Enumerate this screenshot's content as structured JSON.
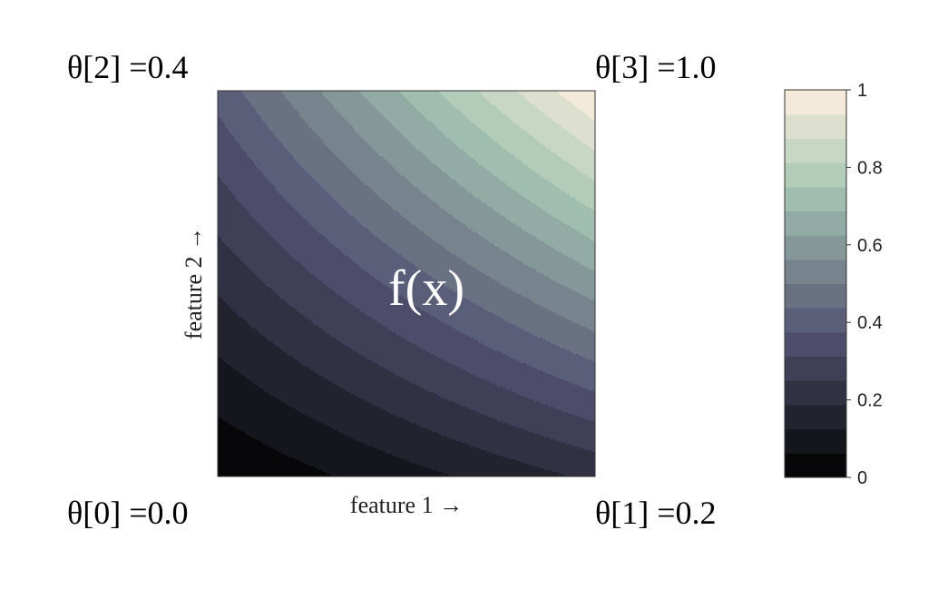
{
  "chart_data": {
    "type": "heatmap",
    "plot_type": "filled-contour",
    "center_label": "f(x)",
    "xlabel": "feature 1 →",
    "ylabel": "feature 2 →",
    "corners": [
      {
        "corner": "bottom-left",
        "label": "θ[0] =0.0",
        "value": 0.0
      },
      {
        "corner": "bottom-right",
        "label": "θ[1] =0.2",
        "value": 0.2
      },
      {
        "corner": "top-left",
        "label": "θ[2] =0.4",
        "value": 0.4
      },
      {
        "corner": "top-right",
        "label": "θ[3] =1.0",
        "value": 1.0
      }
    ],
    "levels": 16,
    "zlim": [
      0,
      1
    ],
    "colorbar": {
      "ticks": [
        0,
        0.2,
        0.4,
        0.6,
        0.8,
        1
      ],
      "tick_labels": [
        "0",
        "0.2",
        "0.4",
        "0.6",
        "0.8",
        "1"
      ],
      "placement": "right"
    },
    "colormap": "bone",
    "grid": false
  }
}
